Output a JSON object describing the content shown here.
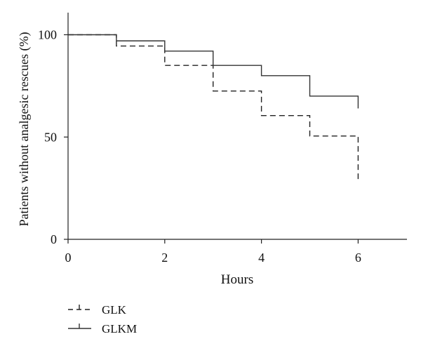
{
  "chart_data": {
    "type": "line",
    "step": true,
    "xlabel": "Hours",
    "ylabel": "Patients without analgesic rescues (%)",
    "xlim": [
      0,
      7
    ],
    "ylim": [
      0,
      100
    ],
    "xticks": [
      0,
      2,
      4,
      6
    ],
    "yticks": [
      0,
      50,
      100
    ],
    "grid": false,
    "legend_position": "bottom-left",
    "series": [
      {
        "name": "GLK",
        "style": "dashed",
        "color": "#222222",
        "x": [
          0,
          1,
          2,
          3,
          4,
          5,
          6
        ],
        "y": [
          100,
          94.5,
          85,
          72.5,
          60.5,
          50.5,
          50.5
        ],
        "end_drop_to": 29
      },
      {
        "name": "GLKM",
        "style": "solid",
        "color": "#333333",
        "x": [
          0,
          1,
          2,
          3,
          4,
          5,
          6
        ],
        "y": [
          100,
          97,
          92,
          85,
          80,
          70,
          70
        ],
        "end_drop_to": 64
      }
    ]
  }
}
